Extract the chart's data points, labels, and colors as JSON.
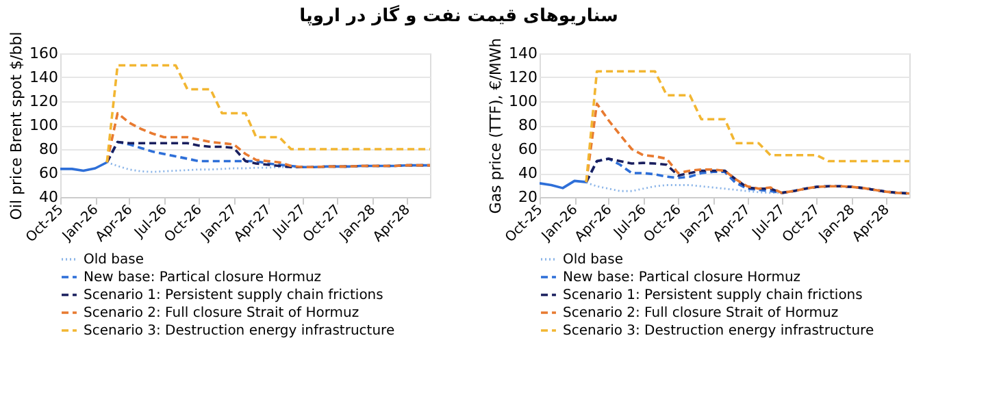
{
  "chart_data": [
    {
      "type": "line",
      "title": "سناریوهای قیمت نفت و گاز در اروپا",
      "ylabel": "Oil price Brent spot $/bbl",
      "x": [
        "2025-10",
        "2025-11",
        "2025-12",
        "2026-01",
        "2026-02",
        "2026-03",
        "2026-04",
        "2026-05",
        "2026-06",
        "2026-07",
        "2026-08",
        "2026-09",
        "2026-10",
        "2026-11",
        "2026-12",
        "2027-01",
        "2027-02",
        "2027-03",
        "2027-04",
        "2027-05",
        "2027-06",
        "2027-07",
        "2027-08",
        "2027-09",
        "2027-10",
        "2027-11",
        "2027-12",
        "2028-01",
        "2028-02",
        "2028-03",
        "2028-04",
        "2028-05",
        "2028-06"
      ],
      "xlim": [
        "2025-10",
        "2028-06"
      ],
      "xticks": [
        {
          "value": "2025-10",
          "label": "Oct-25"
        },
        {
          "value": "2026-01",
          "label": "Jan-26"
        },
        {
          "value": "2026-04",
          "label": "Apr-26"
        },
        {
          "value": "2026-07",
          "label": "Jul-26"
        },
        {
          "value": "2026-10",
          "label": "Oct-26"
        },
        {
          "value": "2027-01",
          "label": "Jan-27"
        },
        {
          "value": "2027-04",
          "label": "Apr-27"
        },
        {
          "value": "2027-07",
          "label": "Jul-27"
        },
        {
          "value": "2027-10",
          "label": "Oct-27"
        },
        {
          "value": "2028-01",
          "label": "Jan-28"
        },
        {
          "value": "2028-04",
          "label": "Apr-28"
        }
      ],
      "ylim": [
        40,
        160
      ],
      "yticks": [
        40,
        60,
        80,
        100,
        120,
        140,
        160
      ],
      "grid": "y",
      "legend": "bottom",
      "series": [
        {
          "color": "#2e6fd8",
          "line_style": "solid",
          "values": [
            63.5,
            63.5,
            62,
            64,
            69,
            null,
            null,
            null,
            null,
            null,
            null,
            null,
            null,
            null,
            null,
            null,
            null,
            null,
            null,
            null,
            null,
            null,
            null,
            null,
            null,
            null,
            null,
            null,
            null,
            null,
            null,
            null,
            null
          ]
        },
        {
          "name": "Old base",
          "color": "#8ab4e8",
          "line_style": "dotted",
          "values": [
            null,
            null,
            null,
            null,
            69,
            66,
            63,
            61.5,
            61,
            61.5,
            62,
            62.5,
            63,
            63,
            63.5,
            64,
            64,
            64.5,
            64.5,
            65,
            65,
            65,
            65,
            65.5,
            65.5,
            65.5,
            66,
            66,
            66,
            66,
            66.5,
            66.5,
            66.5
          ]
        },
        {
          "name": "New base: Partical closure Hormuz",
          "color": "#2e6fd8",
          "line_style": "dashed",
          "values": [
            null,
            null,
            null,
            null,
            69,
            86,
            84,
            81,
            78,
            76,
            74,
            72,
            70,
            70,
            70,
            70,
            70,
            70,
            68,
            67,
            66,
            65,
            65,
            65.5,
            65.5,
            65.5,
            66,
            66,
            66,
            66,
            66.5,
            66.5,
            66.5
          ]
        },
        {
          "name": "Scenario 1: Persistent supply chain frictions",
          "color": "#1a1f5e",
          "line_style": "dashed",
          "values": [
            null,
            null,
            null,
            null,
            69,
            86,
            85,
            85,
            85,
            85,
            85,
            85,
            83,
            82,
            82,
            81,
            70,
            68,
            67,
            66,
            65,
            65,
            65,
            65.5,
            65.5,
            65.5,
            66,
            66,
            66,
            66,
            66.5,
            66.5,
            66.5
          ]
        },
        {
          "name": "Scenario 2: Full closure Strait of Hormuz",
          "color": "#e87a30",
          "line_style": "dashed",
          "values": [
            null,
            null,
            null,
            null,
            69,
            110,
            102,
            97,
            93,
            90,
            90,
            90,
            88,
            86,
            85,
            84,
            76,
            71,
            70,
            69,
            66,
            65,
            65,
            65.5,
            65.5,
            65.5,
            66,
            66,
            66,
            66,
            66.5,
            66.5,
            66.5
          ]
        },
        {
          "name": "Scenario 3: Destruction energy infrastructure",
          "color": "#f2b632",
          "line_style": "dashed",
          "values": [
            null,
            null,
            null,
            null,
            69,
            150,
            150,
            150,
            150,
            150,
            150,
            130,
            130,
            130,
            110,
            110,
            110,
            90,
            90,
            90,
            80,
            80,
            80,
            80,
            80,
            80,
            80,
            80,
            80,
            80,
            80,
            80,
            80
          ]
        }
      ]
    },
    {
      "type": "line",
      "ylabel": "Gas price (TTF), €/MWh",
      "x": [
        "2025-10",
        "2025-11",
        "2025-12",
        "2026-01",
        "2026-02",
        "2026-03",
        "2026-04",
        "2026-05",
        "2026-06",
        "2026-07",
        "2026-08",
        "2026-09",
        "2026-10",
        "2026-11",
        "2026-12",
        "2027-01",
        "2027-02",
        "2027-03",
        "2027-04",
        "2027-05",
        "2027-06",
        "2027-07",
        "2027-08",
        "2027-09",
        "2027-10",
        "2027-11",
        "2027-12",
        "2028-01",
        "2028-02",
        "2028-03",
        "2028-04",
        "2028-05",
        "2028-06"
      ],
      "xlim": [
        "2025-10",
        "2028-06"
      ],
      "xticks": [
        {
          "value": "2025-10",
          "label": "Oct-25"
        },
        {
          "value": "2026-01",
          "label": "Jan-26"
        },
        {
          "value": "2026-04",
          "label": "Apr-26"
        },
        {
          "value": "2026-07",
          "label": "Jul-26"
        },
        {
          "value": "2026-10",
          "label": "Oct-26"
        },
        {
          "value": "2027-01",
          "label": "Jan-27"
        },
        {
          "value": "2027-04",
          "label": "Apr-27"
        },
        {
          "value": "2027-07",
          "label": "Jul-27"
        },
        {
          "value": "2027-10",
          "label": "Oct-27"
        },
        {
          "value": "2028-01",
          "label": "Jan-28"
        },
        {
          "value": "2028-04",
          "label": "Apr-28"
        }
      ],
      "ylim": [
        20,
        140
      ],
      "yticks": [
        20,
        40,
        60,
        80,
        100,
        120,
        140
      ],
      "grid": "y",
      "legend": "bottom",
      "series": [
        {
          "color": "#2e6fd8",
          "line_style": "solid",
          "values": [
            31.5,
            30,
            27.5,
            33.5,
            32.5,
            null,
            null,
            null,
            null,
            null,
            null,
            null,
            null,
            null,
            null,
            null,
            null,
            null,
            null,
            null,
            null,
            null,
            null,
            null,
            null,
            null,
            null,
            null,
            null,
            null,
            null,
            null,
            null
          ]
        },
        {
          "name": "Old base",
          "color": "#8ab4e8",
          "line_style": "dotted",
          "values": [
            null,
            null,
            null,
            null,
            32,
            29,
            27,
            25,
            25,
            27,
            29,
            30,
            30,
            30,
            29,
            28,
            27,
            26,
            25,
            24,
            23.5,
            23.5,
            25,
            27,
            28.5,
            29,
            29,
            28.5,
            27.5,
            26,
            24.5,
            23.5,
            23
          ]
        },
        {
          "name": "New base: Partical closure Hormuz",
          "color": "#2e6fd8",
          "line_style": "dashed",
          "values": [
            null,
            null,
            null,
            null,
            32.5,
            50,
            52,
            47,
            40,
            40,
            39,
            37,
            36,
            37,
            40,
            41,
            41,
            32,
            27,
            26,
            25,
            23.5,
            25,
            27,
            28.5,
            29,
            29,
            28.5,
            27.5,
            26,
            24.5,
            23.5,
            23
          ]
        },
        {
          "name": "Scenario 1: Persistent supply chain frictions",
          "color": "#1a1f5e",
          "line_style": "dashed",
          "values": [
            null,
            null,
            null,
            null,
            32.5,
            50,
            52,
            50,
            48,
            48.5,
            48,
            47,
            38,
            40,
            42,
            42,
            42,
            35,
            28,
            27,
            27,
            23.5,
            25,
            27,
            28.5,
            29,
            29,
            28.5,
            27.5,
            26,
            24.5,
            23.5,
            23
          ]
        },
        {
          "name": "Scenario 2: Full closure Strait of Hormuz",
          "color": "#e87a30",
          "line_style": "dashed",
          "values": [
            null,
            null,
            null,
            null,
            32.5,
            98,
            84,
            72,
            60,
            55,
            54,
            52,
            40,
            42,
            43,
            43,
            42,
            35,
            29,
            27,
            28,
            23.5,
            25,
            27,
            28.5,
            29,
            29,
            28.5,
            27.5,
            26,
            24.5,
            23.5,
            23
          ]
        },
        {
          "name": "Scenario 3: Destruction energy infrastructure",
          "color": "#f2b632",
          "line_style": "dashed",
          "values": [
            null,
            null,
            null,
            null,
            32.5,
            125,
            125,
            125,
            125,
            125,
            125,
            105,
            105,
            105,
            85,
            85,
            85,
            65,
            65,
            65,
            55,
            55,
            55,
            55,
            55,
            50,
            50,
            50,
            50,
            50,
            50,
            50,
            50
          ]
        }
      ]
    }
  ]
}
